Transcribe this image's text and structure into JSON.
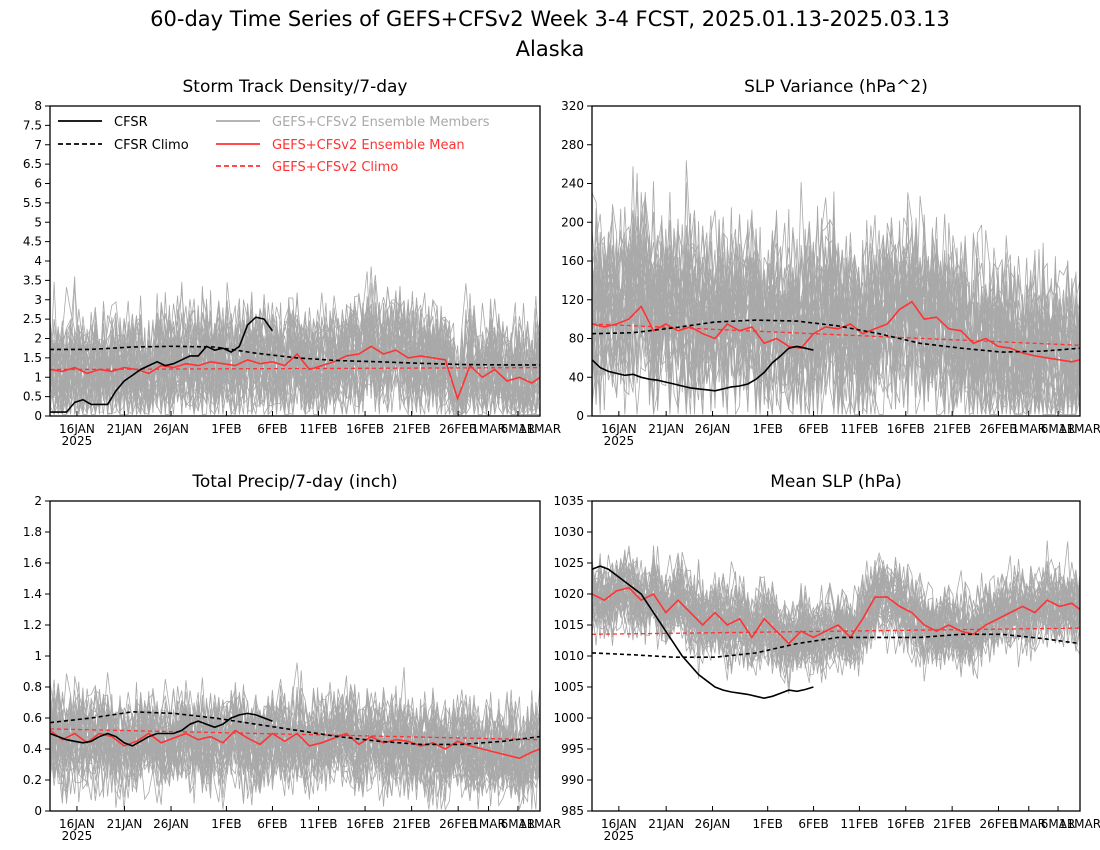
{
  "title": "60-day Time Series of GEFS+CFSv2 Week 3-4 FCST, 2025.01.13-2025.03.13",
  "subtitle": "Alaska",
  "colors": {
    "cfsr": "#000000",
    "members": "#a9a9a9",
    "ens_mean": "#ff3333",
    "gefs_climo": "#ff3333",
    "cfsr_climo": "#000000"
  },
  "legend": {
    "cfsr": "CFSR",
    "cfsr_climo": "CFSR Climo",
    "members": "GEFS+CFSv2 Ensemble Members",
    "ens_mean": "GEFS+CFSv2 Ensemble Mean",
    "gefs_climo": "GEFS+CFSv2 Climo"
  },
  "chart_data": [
    {
      "type": "line",
      "title": "Storm Track Density/7-day",
      "x_tick_labels": [
        "16JAN",
        "21JAN",
        "26JAN",
        "1FEB",
        "6FEB",
        "11FEB",
        "16FEB",
        "21FEB",
        "26FEB",
        "1MAR",
        "6MAR",
        "11MAR"
      ],
      "x_year_label": "2025",
      "y_tick_labels": [
        "0",
        "0.5",
        "1",
        "1.5",
        "2",
        "2.5",
        "3",
        "3.5",
        "4",
        "4.5",
        "5",
        "5.5",
        "6",
        "6.5",
        "7",
        "7.5",
        "8"
      ],
      "ylim": [
        0,
        8
      ],
      "grid": false,
      "legend_position": "top-left",
      "series": [
        {
          "name": "CFSR",
          "x_day": [
            0,
            2,
            4,
            6,
            8,
            10,
            12,
            14,
            16,
            18,
            20,
            22,
            24,
            26,
            28,
            30,
            32,
            34,
            36,
            38,
            40,
            42,
            44,
            46,
            48,
            50,
            52,
            54
          ],
          "values": [
            0.1,
            0.1,
            0.1,
            0.35,
            0.42,
            0.3,
            0.3,
            0.3,
            0.65,
            0.9,
            1.05,
            1.2,
            1.3,
            1.4,
            1.3,
            1.35,
            1.45,
            1.55,
            1.55,
            1.8,
            1.7,
            1.75,
            1.65,
            1.8,
            2.35,
            2.55,
            2.5,
            2.2
          ]
        },
        {
          "name": "CFSR Climo",
          "x_day": [
            0,
            10,
            20,
            30,
            40,
            50,
            60,
            70,
            80,
            90,
            100,
            110,
            119
          ],
          "values": [
            1.72,
            1.72,
            1.78,
            1.8,
            1.78,
            1.62,
            1.5,
            1.43,
            1.4,
            1.36,
            1.33,
            1.32,
            1.32
          ]
        },
        {
          "name": "GEFS+CFSv2 Ensemble Mean",
          "x_day": [
            0,
            3,
            6,
            9,
            12,
            15,
            18,
            21,
            24,
            27,
            30,
            33,
            36,
            39,
            42,
            45,
            48,
            51,
            54,
            57,
            60,
            63,
            66,
            69,
            72,
            75,
            78,
            81,
            84,
            87,
            90,
            93,
            96,
            99,
            102,
            105,
            108,
            111,
            114,
            117,
            119
          ],
          "values": [
            1.2,
            1.15,
            1.25,
            1.1,
            1.2,
            1.15,
            1.25,
            1.2,
            1.1,
            1.3,
            1.25,
            1.35,
            1.3,
            1.4,
            1.35,
            1.3,
            1.45,
            1.35,
            1.4,
            1.3,
            1.6,
            1.2,
            1.3,
            1.4,
            1.55,
            1.6,
            1.8,
            1.6,
            1.7,
            1.5,
            1.55,
            1.5,
            1.45,
            0.45,
            1.3,
            1.0,
            1.2,
            0.9,
            1.0,
            0.85,
            1.0
          ]
        },
        {
          "name": "GEFS+CFSv2 Climo",
          "x_day": [
            0,
            119
          ],
          "values": [
            1.2,
            1.25
          ]
        }
      ],
      "ensemble_members": "~40 grey member traces, daily values ranging roughly 0.3 to 4.5"
    },
    {
      "type": "line",
      "title": "SLP Variance (hPa^2)",
      "x_tick_labels": [
        "16JAN",
        "21JAN",
        "26JAN",
        "1FEB",
        "6FEB",
        "11FEB",
        "16FEB",
        "21FEB",
        "26FEB",
        "1MAR",
        "6MAR",
        "11MAR"
      ],
      "x_year_label": "2025",
      "y_tick_labels": [
        "0",
        "40",
        "80",
        "120",
        "160",
        "200",
        "240",
        "280",
        "320"
      ],
      "ylim": [
        0,
        320
      ],
      "grid": false,
      "series": [
        {
          "name": "CFSR",
          "x_day": [
            0,
            2,
            4,
            6,
            8,
            10,
            12,
            14,
            16,
            18,
            20,
            22,
            24,
            26,
            28,
            30,
            32,
            34,
            36,
            38,
            40,
            42,
            44,
            46,
            48,
            50,
            52,
            54
          ],
          "values": [
            58,
            50,
            46,
            44,
            42,
            43,
            40,
            38,
            37,
            35,
            33,
            31,
            29,
            28,
            27,
            26,
            28,
            30,
            31,
            33,
            38,
            45,
            55,
            62,
            70,
            72,
            70,
            68
          ]
        },
        {
          "name": "CFSR Climo",
          "x_day": [
            0,
            10,
            20,
            30,
            40,
            50,
            60,
            70,
            80,
            90,
            100,
            110,
            119
          ],
          "values": [
            85,
            86,
            91,
            97,
            99,
            98,
            93,
            85,
            75,
            70,
            66,
            67,
            70
          ]
        },
        {
          "name": "GEFS+CFSv2 Ensemble Mean",
          "x_day": [
            0,
            3,
            6,
            9,
            12,
            15,
            18,
            21,
            24,
            27,
            30,
            33,
            36,
            39,
            42,
            45,
            48,
            51,
            54,
            57,
            60,
            63,
            66,
            69,
            72,
            75,
            78,
            81,
            84,
            87,
            90,
            93,
            96,
            99,
            102,
            105,
            108,
            111,
            114,
            117,
            119
          ],
          "values": [
            95,
            92,
            95,
            100,
            113,
            88,
            95,
            88,
            92,
            85,
            80,
            95,
            88,
            92,
            75,
            80,
            72,
            70,
            85,
            92,
            90,
            95,
            85,
            90,
            95,
            110,
            118,
            100,
            102,
            90,
            88,
            75,
            80,
            72,
            70,
            65,
            62,
            60,
            58,
            56,
            58
          ]
        },
        {
          "name": "GEFS+CFSv2 Climo",
          "x_day": [
            0,
            119
          ],
          "values": [
            95,
            73
          ]
        }
      ],
      "ensemble_members": "~40 grey member traces, daily values ranging roughly 15 to 305"
    },
    {
      "type": "line",
      "title": "Total Precip/7-day (inch)",
      "x_tick_labels": [
        "16JAN",
        "21JAN",
        "26JAN",
        "1FEB",
        "6FEB",
        "11FEB",
        "16FEB",
        "21FEB",
        "26FEB",
        "1MAR",
        "6MAR",
        "11MAR"
      ],
      "x_year_label": "2025",
      "y_tick_labels": [
        "0",
        "0.2",
        "0.4",
        "0.6",
        "0.8",
        "1",
        "1.2",
        "1.4",
        "1.6",
        "1.8",
        "2"
      ],
      "ylim": [
        0,
        2
      ],
      "grid": false,
      "series": [
        {
          "name": "CFSR",
          "x_day": [
            0,
            2,
            4,
            6,
            8,
            10,
            12,
            14,
            16,
            18,
            20,
            22,
            24,
            26,
            28,
            30,
            32,
            34,
            36,
            38,
            40,
            42,
            44,
            46,
            48,
            50,
            52,
            54
          ],
          "values": [
            0.5,
            0.48,
            0.46,
            0.45,
            0.44,
            0.45,
            0.48,
            0.5,
            0.48,
            0.44,
            0.42,
            0.45,
            0.48,
            0.5,
            0.5,
            0.5,
            0.52,
            0.56,
            0.58,
            0.56,
            0.54,
            0.56,
            0.6,
            0.62,
            0.63,
            0.62,
            0.6,
            0.58
          ]
        },
        {
          "name": "CFSR Climo",
          "x_day": [
            0,
            10,
            20,
            30,
            40,
            50,
            60,
            70,
            80,
            90,
            100,
            110,
            119
          ],
          "values": [
            0.57,
            0.6,
            0.64,
            0.63,
            0.6,
            0.56,
            0.52,
            0.48,
            0.45,
            0.43,
            0.43,
            0.45,
            0.48
          ]
        },
        {
          "name": "GEFS+CFSv2 Ensemble Mean",
          "x_day": [
            0,
            3,
            6,
            9,
            12,
            15,
            18,
            21,
            24,
            27,
            30,
            33,
            36,
            39,
            42,
            45,
            48,
            51,
            54,
            57,
            60,
            63,
            66,
            69,
            72,
            75,
            78,
            81,
            84,
            87,
            90,
            93,
            96,
            99,
            102,
            105,
            108,
            111,
            114,
            117,
            119
          ],
          "values": [
            0.52,
            0.46,
            0.5,
            0.44,
            0.5,
            0.48,
            0.42,
            0.45,
            0.5,
            0.44,
            0.47,
            0.5,
            0.46,
            0.48,
            0.44,
            0.52,
            0.47,
            0.43,
            0.5,
            0.45,
            0.5,
            0.42,
            0.44,
            0.47,
            0.5,
            0.43,
            0.48,
            0.44,
            0.46,
            0.45,
            0.42,
            0.44,
            0.4,
            0.45,
            0.42,
            0.4,
            0.38,
            0.36,
            0.34,
            0.38,
            0.4
          ]
        },
        {
          "name": "GEFS+CFSv2 Climo",
          "x_day": [
            0,
            119
          ],
          "values": [
            0.53,
            0.46
          ]
        }
      ],
      "ensemble_members": "~40 grey member traces, daily values ranging roughly 0.1 to 1.45"
    },
    {
      "type": "line",
      "title": "Mean SLP (hPa)",
      "x_tick_labels": [
        "16JAN",
        "21JAN",
        "26JAN",
        "1FEB",
        "6FEB",
        "11FEB",
        "16FEB",
        "21FEB",
        "26FEB",
        "1MAR",
        "6MAR",
        "11MAR"
      ],
      "x_year_label": "2025",
      "y_tick_labels": [
        "985",
        "990",
        "995",
        "1000",
        "1005",
        "1010",
        "1015",
        "1020",
        "1025",
        "1030",
        "1035"
      ],
      "ylim": [
        985,
        1035
      ],
      "grid": false,
      "series": [
        {
          "name": "CFSR",
          "x_day": [
            0,
            2,
            4,
            6,
            8,
            10,
            12,
            14,
            16,
            18,
            20,
            22,
            24,
            26,
            28,
            30,
            32,
            34,
            36,
            38,
            40,
            42,
            44,
            46,
            48,
            50,
            52,
            54
          ],
          "values": [
            1024,
            1024.5,
            1024,
            1023,
            1022,
            1021,
            1020,
            1018,
            1016,
            1014,
            1012,
            1010,
            1008.5,
            1007,
            1006,
            1005,
            1004.5,
            1004.2,
            1004,
            1003.8,
            1003.5,
            1003.2,
            1003.5,
            1004,
            1004.5,
            1004.3,
            1004.6,
            1005
          ]
        },
        {
          "name": "CFSR Climo",
          "x_day": [
            0,
            10,
            20,
            30,
            40,
            50,
            60,
            70,
            80,
            90,
            100,
            110,
            119
          ],
          "values": [
            1010.5,
            1010.2,
            1009.8,
            1009.8,
            1010.5,
            1012,
            1013,
            1013,
            1013,
            1013.5,
            1013.5,
            1012.8,
            1012
          ]
        },
        {
          "name": "GEFS+CFSv2 Ensemble Mean",
          "x_day": [
            0,
            3,
            6,
            9,
            12,
            15,
            18,
            21,
            24,
            27,
            30,
            33,
            36,
            39,
            42,
            45,
            48,
            51,
            54,
            57,
            60,
            63,
            66,
            69,
            72,
            75,
            78,
            81,
            84,
            87,
            90,
            93,
            96,
            99,
            102,
            105,
            108,
            111,
            114,
            117,
            119
          ],
          "values": [
            1020,
            1019,
            1020.5,
            1021,
            1019,
            1020,
            1017,
            1019,
            1017,
            1015,
            1017,
            1015,
            1016,
            1013,
            1016,
            1014,
            1012,
            1014,
            1013,
            1014,
            1015,
            1013,
            1016,
            1019.5,
            1019.5,
            1018,
            1017,
            1015,
            1014,
            1015,
            1014,
            1013.5,
            1015,
            1016,
            1017,
            1018,
            1017,
            1019,
            1018,
            1018.5,
            1017.5
          ]
        },
        {
          "name": "GEFS+CFSv2 Climo",
          "x_day": [
            0,
            119
          ],
          "values": [
            1013.5,
            1014.5
          ]
        }
      ],
      "ensemble_members": "~40 grey member traces, daily values ranging roughly 1000 to 1033"
    }
  ]
}
